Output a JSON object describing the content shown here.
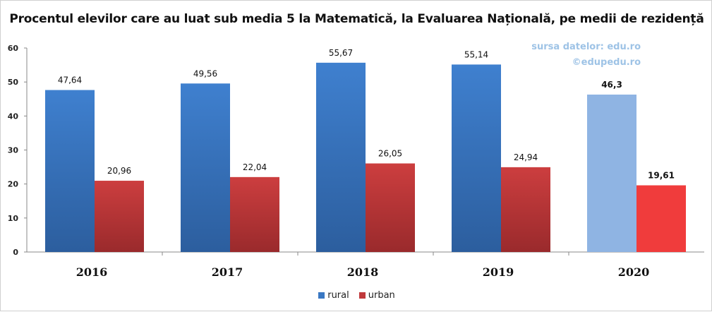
{
  "chart_data": {
    "type": "bar",
    "title": "Procentul elevilor care au luat sub media 5 la Matematică,  la Evaluarea Națională, pe medii de rezidență",
    "categories": [
      "2016",
      "2017",
      "2018",
      "2019",
      "2020"
    ],
    "series": [
      {
        "name": "rural",
        "color": "#3a78c3",
        "values": [
          47.64,
          49.56,
          55.67,
          55.14,
          46.3
        ],
        "labels": [
          "47,64",
          "49,56",
          "55,67",
          "55,14",
          "46,3"
        ]
      },
      {
        "name": "urban",
        "color": "#c0393b",
        "values": [
          20.96,
          22.04,
          26.05,
          24.94,
          19.61
        ],
        "labels": [
          "20,96",
          "22,04",
          "26,05",
          "24,94",
          "19,61"
        ]
      }
    ],
    "highlight": {
      "category": "2020",
      "colors": {
        "rural": "#8fb4e3",
        "urban": "#f03c3c"
      }
    },
    "ylim": [
      0,
      60
    ],
    "yticks": [
      "0",
      "10",
      "20",
      "30",
      "40",
      "50",
      "60"
    ],
    "xlabel": "",
    "ylabel": "",
    "grid": false,
    "legend_position": "bottom"
  },
  "source": {
    "line1": "sursa datelor: edu.ro",
    "line2": "©edupedu.ro"
  }
}
